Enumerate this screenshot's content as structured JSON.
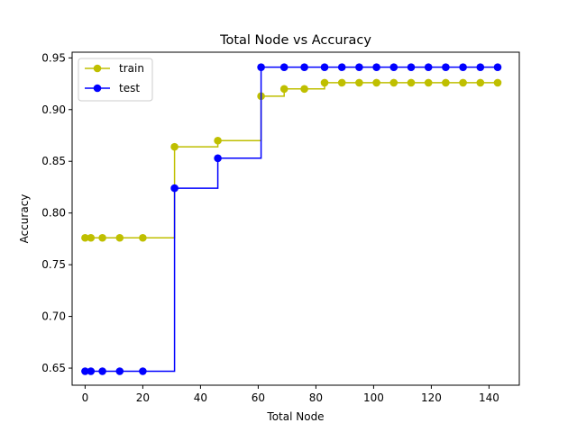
{
  "chart_data": {
    "type": "line",
    "step": "post",
    "title": "Total Node vs Accuracy",
    "xlabel": "Total Node",
    "ylabel": "Accuracy",
    "xlim": [
      -4.5,
      150.5
    ],
    "ylim": [
      0.6335,
      0.9555
    ],
    "xticks": [
      0,
      20,
      40,
      60,
      80,
      100,
      120,
      140
    ],
    "yticks": [
      0.65,
      0.7,
      0.75,
      0.8,
      0.85,
      0.9,
      0.95
    ],
    "ytick_labels": [
      "0.65",
      "0.70",
      "0.75",
      "0.80",
      "0.85",
      "0.90",
      "0.95"
    ],
    "grid": false,
    "legend_position": "top-left",
    "series": [
      {
        "name": "train",
        "color": "#bfbf00",
        "x": [
          0,
          2,
          6,
          12,
          20,
          31,
          46,
          61,
          69,
          76,
          83,
          89,
          95,
          101,
          107,
          113,
          119,
          125,
          131,
          137,
          143
        ],
        "y": [
          0.776,
          0.776,
          0.776,
          0.776,
          0.776,
          0.864,
          0.87,
          0.913,
          0.92,
          0.92,
          0.926,
          0.926,
          0.926,
          0.926,
          0.926,
          0.926,
          0.926,
          0.926,
          0.926,
          0.926,
          0.926
        ]
      },
      {
        "name": "test",
        "color": "#0000ff",
        "x": [
          0,
          2,
          6,
          12,
          20,
          31,
          46,
          61,
          69,
          76,
          83,
          89,
          95,
          101,
          107,
          113,
          119,
          125,
          131,
          137,
          143
        ],
        "y": [
          0.647,
          0.647,
          0.647,
          0.647,
          0.647,
          0.824,
          0.853,
          0.941,
          0.941,
          0.941,
          0.941,
          0.941,
          0.941,
          0.941,
          0.941,
          0.941,
          0.941,
          0.941,
          0.941,
          0.941,
          0.941
        ]
      }
    ]
  }
}
